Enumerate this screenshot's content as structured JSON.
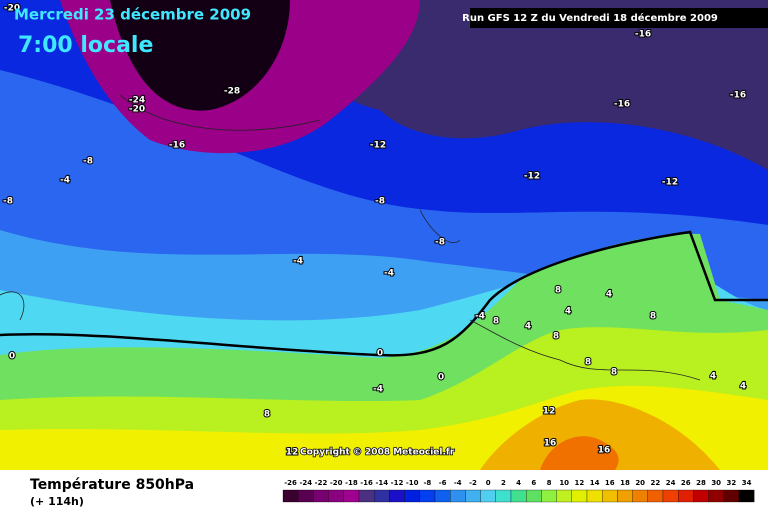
{
  "header": {
    "date": "Mercredi 23 décembre 2009",
    "time": "7:00 locale",
    "run": "Run GFS 12 Z du Vendredi 18 décembre 2009"
  },
  "map": {
    "contour_labels": [
      -20,
      -16,
      -24,
      -20,
      -28,
      -16,
      -16,
      -16,
      -12,
      -8,
      -4,
      -12,
      -12,
      -8,
      -8,
      -8,
      -4,
      -4,
      8,
      4,
      -4,
      8,
      4,
      4,
      8,
      8,
      0,
      0,
      8,
      8,
      4,
      4,
      0,
      -4,
      8,
      12,
      16,
      16,
      12
    ],
    "copyright": "Copyright © 2008 Meteociel.fr"
  },
  "footer": {
    "title": "Température 850hPa",
    "lead": "(+ 114h)"
  },
  "color_scale": {
    "labels": [
      -26,
      -24,
      -22,
      -20,
      -18,
      -16,
      -14,
      -12,
      -10,
      -8,
      -6,
      -4,
      -2,
      0,
      2,
      4,
      6,
      8,
      10,
      12,
      14,
      16,
      18,
      20,
      22,
      24,
      26,
      28,
      30,
      32,
      34
    ],
    "colors": [
      "#3a0030",
      "#5a0050",
      "#780070",
      "#8a0080",
      "#a00090",
      "#4a3080",
      "#3030a0",
      "#1a10c8",
      "#0020e0",
      "#0040f0",
      "#1060f0",
      "#3090f0",
      "#40b0f0",
      "#50d0f0",
      "#40e0d0",
      "#40e090",
      "#60e060",
      "#90f040",
      "#c0f020",
      "#e0f000",
      "#f0e000",
      "#f0c000",
      "#f0a000",
      "#f08000",
      "#f06000",
      "#f04000",
      "#e02000",
      "#c00000",
      "#900000",
      "#600000",
      "#000000"
    ]
  }
}
